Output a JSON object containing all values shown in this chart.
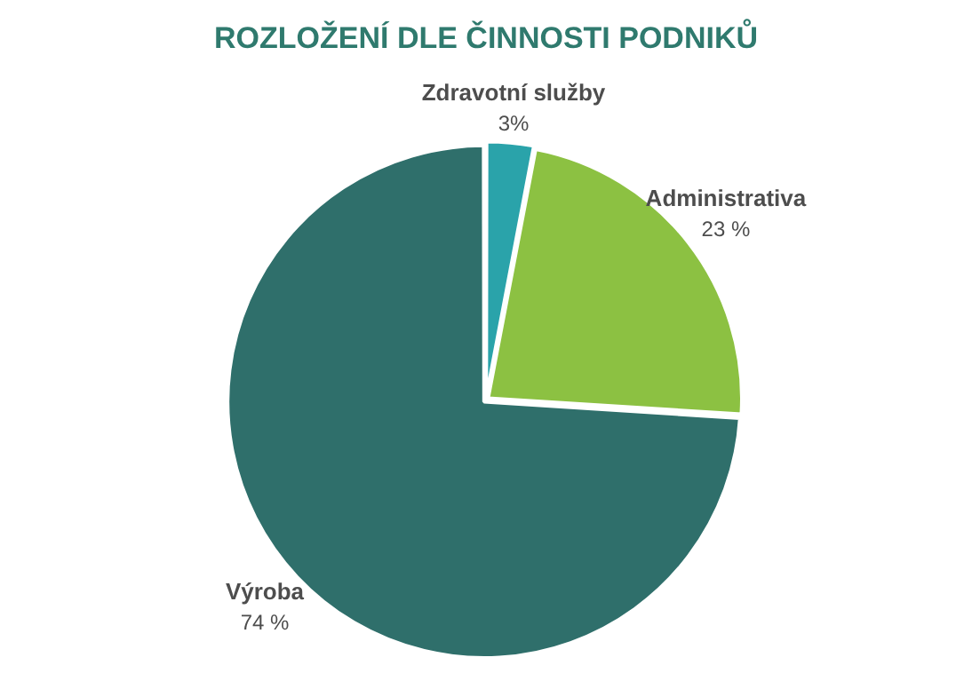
{
  "chart_data": {
    "type": "pie",
    "title": "ROZLOŽENÍ DLE ČINNOSTI PODNIKŮ",
    "categories": [
      "Zdravotní služby",
      "Administrativa",
      "Výroba"
    ],
    "values": [
      3,
      23,
      74
    ],
    "colors": [
      "#2aa3aa",
      "#8cc142",
      "#2f6f6b"
    ],
    "value_labels": [
      "3%",
      "23 %",
      "74 %"
    ],
    "legend": false
  }
}
